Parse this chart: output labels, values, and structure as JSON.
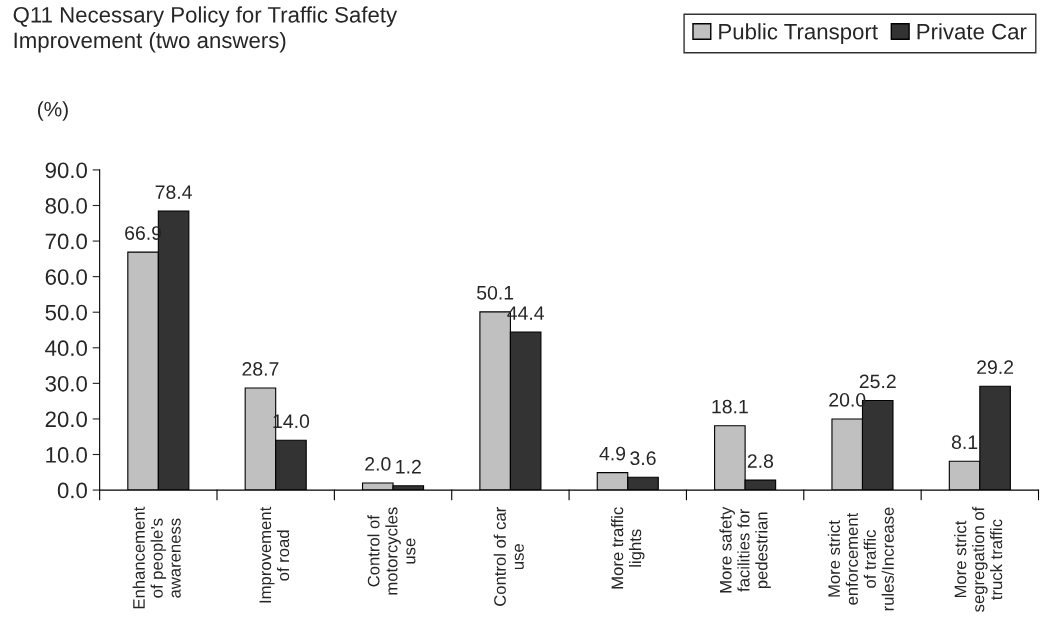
{
  "chart_data": {
    "type": "bar",
    "title": "Q11 Necessary Policy for Traffic Safety\nImprovement (two answers)",
    "ylabel": "(%)",
    "categories": [
      "Enhancement\nof people’s\nawareness",
      "Improvement\nof road",
      "Control of\nmotorcycles\nuse",
      "Control of car\nuse",
      "More traffic\nlights",
      "More safety\nfacilities for\npedestrian",
      "More strict\nenforcement\nof traffic\nrules/Increase",
      "More strict\nsegregation of\ntruck traffic"
    ],
    "series": [
      {
        "name": "Public Transport",
        "color": "#c0c0c0",
        "values": [
          66.9,
          28.7,
          2.0,
          50.1,
          4.9,
          18.1,
          20.0,
          8.1
        ],
        "value_labels": [
          "66.9",
          "28.7",
          "2.0",
          "50.1",
          "4.9",
          "18.1",
          "20.0",
          "8.1"
        ]
      },
      {
        "name": "Private Car",
        "color": "#333333",
        "values": [
          78.4,
          14.0,
          1.2,
          44.4,
          3.6,
          2.8,
          25.2,
          29.2
        ],
        "value_labels": [
          "78.4",
          "14.0",
          "1.2",
          "44.4",
          "3.6",
          "2.8",
          "25.2",
          "29.2"
        ]
      }
    ],
    "ylim": [
      0,
      90
    ],
    "yticks": [
      {
        "value": 0,
        "label": "0.0"
      },
      {
        "value": 10,
        "label": "10.0"
      },
      {
        "value": 20,
        "label": "20.0"
      },
      {
        "value": 30,
        "label": "30.0"
      },
      {
        "value": 40,
        "label": "40.0"
      },
      {
        "value": 50,
        "label": "50.0"
      },
      {
        "value": 60,
        "label": "60.0"
      },
      {
        "value": 70,
        "label": "70.0"
      },
      {
        "value": 80,
        "label": "80.0"
      },
      {
        "value": 90,
        "label": "90.0"
      }
    ],
    "grid": false,
    "legend": "top right"
  }
}
